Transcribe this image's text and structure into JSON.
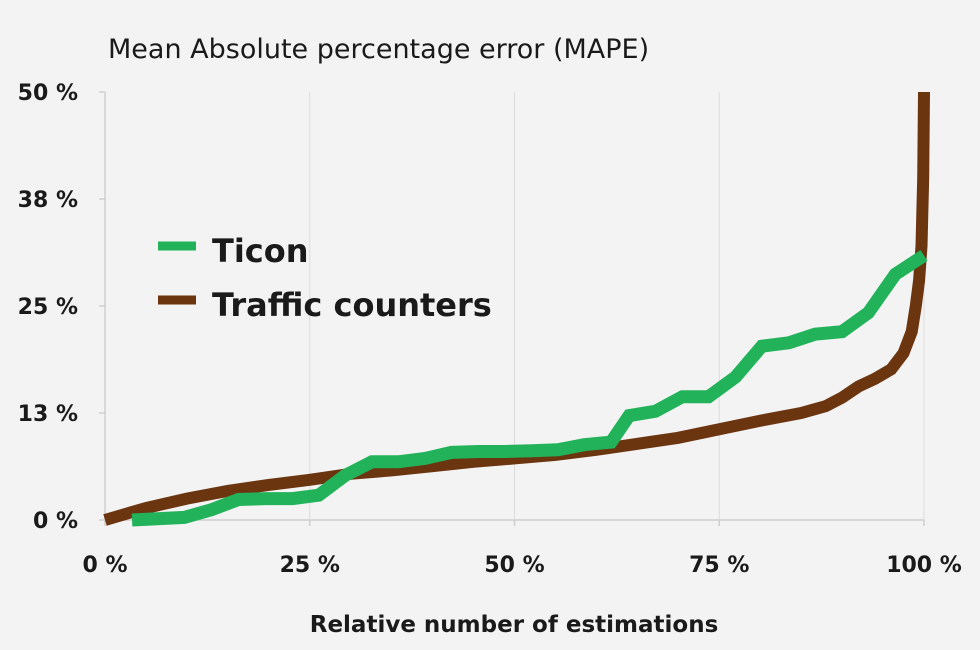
{
  "chart_data": {
    "type": "line",
    "title": "Mean Absolute percentage error (MAPE)",
    "xlabel": "Relative number of estimations",
    "ylabel": "",
    "xlim": [
      0,
      100
    ],
    "ylim": [
      0,
      50
    ],
    "x_ticks": [
      {
        "value": 0,
        "label": "0 %"
      },
      {
        "value": 25,
        "label": "25 %"
      },
      {
        "value": 50,
        "label": "50 %"
      },
      {
        "value": 75,
        "label": "75 %"
      },
      {
        "value": 100,
        "label": "100 %"
      }
    ],
    "y_ticks": [
      {
        "value": 0,
        "label": "0 %"
      },
      {
        "value": 12.5,
        "label": "13 %"
      },
      {
        "value": 25,
        "label": "25 %"
      },
      {
        "value": 37.5,
        "label": "38 %"
      },
      {
        "value": 50,
        "label": "50 %"
      }
    ],
    "grid": "vertical",
    "legend_position": "upper-left",
    "series": [
      {
        "name": "Ticon",
        "color": "#22b35a",
        "points": [
          [
            3.3,
            0.0
          ],
          [
            9.7,
            0.3
          ],
          [
            13.0,
            1.2
          ],
          [
            16.3,
            2.4
          ],
          [
            19.6,
            2.5
          ],
          [
            22.9,
            2.5
          ],
          [
            26.1,
            2.9
          ],
          [
            29.3,
            5.2
          ],
          [
            32.6,
            6.8
          ],
          [
            35.8,
            6.8
          ],
          [
            39.1,
            7.2
          ],
          [
            42.3,
            7.9
          ],
          [
            45.6,
            8.0
          ],
          [
            48.8,
            8.0
          ],
          [
            52.1,
            8.1
          ],
          [
            55.3,
            8.2
          ],
          [
            58.5,
            8.8
          ],
          [
            61.8,
            9.1
          ],
          [
            64.0,
            12.2
          ],
          [
            67.2,
            12.7
          ],
          [
            70.5,
            14.4
          ],
          [
            73.7,
            14.4
          ],
          [
            77.0,
            16.7
          ],
          [
            80.2,
            20.3
          ],
          [
            83.5,
            20.7
          ],
          [
            86.7,
            21.7
          ],
          [
            90.0,
            22.0
          ],
          [
            93.2,
            24.2
          ],
          [
            96.5,
            28.7
          ],
          [
            100.0,
            30.9
          ]
        ]
      },
      {
        "name": "Traffic counters",
        "color": "#6b3510",
        "points": [
          [
            0.0,
            0.0
          ],
          [
            5.0,
            1.4
          ],
          [
            10.0,
            2.5
          ],
          [
            15.0,
            3.4
          ],
          [
            20.0,
            4.1
          ],
          [
            25.0,
            4.7
          ],
          [
            30.0,
            5.4
          ],
          [
            35.0,
            5.8
          ],
          [
            40.0,
            6.3
          ],
          [
            45.0,
            6.8
          ],
          [
            50.0,
            7.2
          ],
          [
            55.0,
            7.6
          ],
          [
            60.0,
            8.2
          ],
          [
            65.0,
            8.9
          ],
          [
            70.0,
            9.6
          ],
          [
            75.0,
            10.6
          ],
          [
            80.0,
            11.6
          ],
          [
            85.0,
            12.5
          ],
          [
            88.0,
            13.3
          ],
          [
            90.0,
            14.3
          ],
          [
            92.0,
            15.6
          ],
          [
            94.0,
            16.5
          ],
          [
            96.0,
            17.6
          ],
          [
            97.5,
            19.5
          ],
          [
            98.5,
            22.0
          ],
          [
            99.0,
            25.0
          ],
          [
            99.4,
            28.0
          ],
          [
            99.7,
            32.0
          ],
          [
            99.9,
            40.0
          ],
          [
            100.0,
            50.0
          ]
        ]
      }
    ]
  }
}
